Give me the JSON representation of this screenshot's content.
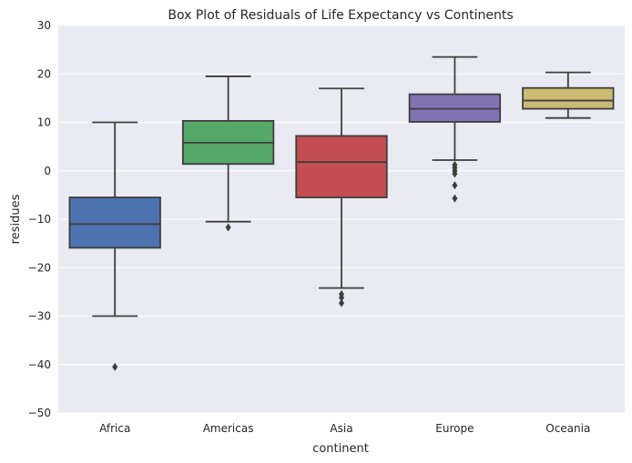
{
  "chart_data": {
    "type": "box",
    "title": "Box Plot of Residuals of Life Expectancy vs Continents",
    "xlabel": "continent",
    "ylabel": "residues",
    "ylim": [
      -50,
      30
    ],
    "yticks": [
      30,
      20,
      10,
      0,
      -10,
      -20,
      -30,
      -40,
      -50
    ],
    "grid": true,
    "categories": [
      "Africa",
      "Americas",
      "Asia",
      "Europe",
      "Oceania"
    ],
    "boxes": [
      {
        "category": "Africa",
        "whisker_low": -30.0,
        "q1": -15.9,
        "median": -11.0,
        "q3": -5.5,
        "whisker_high": 10.0,
        "outliers": [
          -40.5
        ],
        "color": "#4c72b0"
      },
      {
        "category": "Americas",
        "whisker_low": -10.5,
        "q1": 1.4,
        "median": 5.8,
        "q3": 10.3,
        "whisker_high": 19.5,
        "outliers": [
          -11.7
        ],
        "color": "#55a868"
      },
      {
        "category": "Asia",
        "whisker_low": -24.2,
        "q1": -5.5,
        "median": 1.8,
        "q3": 7.2,
        "whisker_high": 17.0,
        "outliers": [
          -25.5,
          -26.2,
          -27.3
        ],
        "color": "#c44e52"
      },
      {
        "category": "Europe",
        "whisker_low": 2.2,
        "q1": 10.1,
        "median": 12.8,
        "q3": 15.8,
        "whisker_high": 23.5,
        "outliers": [
          1.2,
          0.6,
          0.0,
          -0.6,
          -3.0,
          -5.7
        ],
        "color": "#8172b2"
      },
      {
        "category": "Oceania",
        "whisker_low": 10.9,
        "q1": 12.8,
        "median": 14.5,
        "q3": 17.1,
        "whisker_high": 20.3,
        "outliers": [],
        "color": "#ccb974"
      }
    ]
  }
}
